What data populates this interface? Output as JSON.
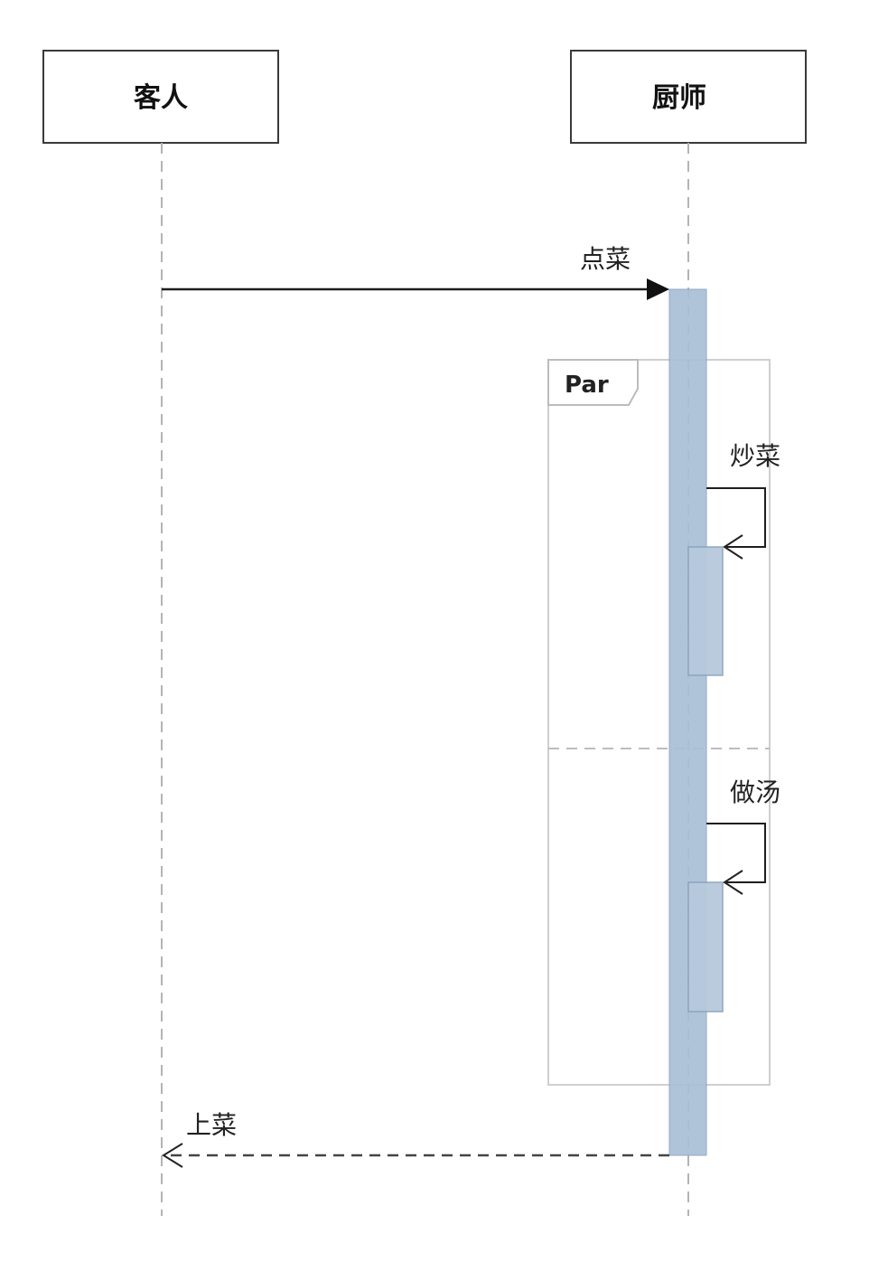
{
  "diagram": {
    "type": "sequence",
    "participants": [
      {
        "id": "customer",
        "label": "客人"
      },
      {
        "id": "chef",
        "label": "厨师"
      }
    ],
    "messages": {
      "order": {
        "from": "customer",
        "to": "chef",
        "label": "点菜",
        "style": "solid"
      },
      "stir_fry": {
        "from": "chef",
        "to": "chef",
        "label": "炒菜",
        "style": "self"
      },
      "soup": {
        "from": "chef",
        "to": "chef",
        "label": "做汤",
        "style": "self"
      },
      "serve": {
        "from": "chef",
        "to": "customer",
        "label": "上菜",
        "style": "dashed-return"
      }
    },
    "fragment": {
      "operator": "Par",
      "operands": 2
    }
  }
}
